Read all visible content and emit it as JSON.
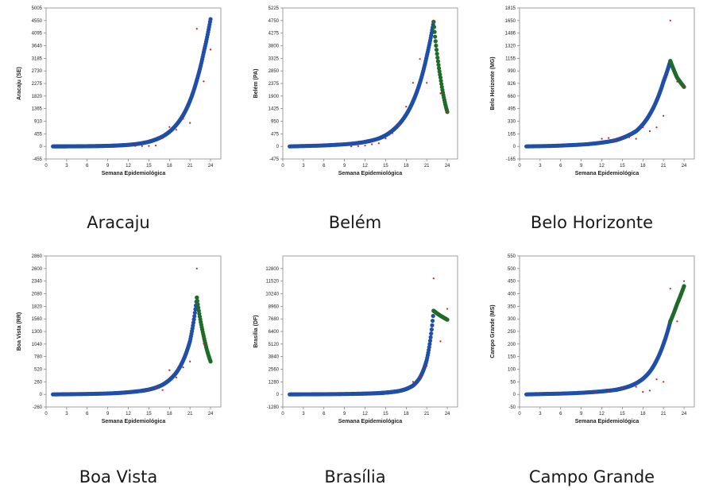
{
  "chart_data": [
    {
      "type": "scatter",
      "caption": "Aracaju",
      "xlabel": "Semana Epidemiológica",
      "ylabel": "Aracaju (SE)",
      "xticks": [
        0,
        3,
        6,
        9,
        12,
        15,
        18,
        21,
        24
      ],
      "yticks": [
        -455,
        0,
        455,
        910,
        1365,
        1820,
        2275,
        2730,
        3185,
        3640,
        4095,
        4550,
        5005
      ],
      "xlim": [
        0,
        25.5
      ],
      "ylim": [
        -455,
        5005
      ],
      "observed": {
        "x": [
          12,
          13,
          14,
          15,
          16,
          17,
          18,
          19,
          20,
          21,
          22,
          23,
          24
        ],
        "y": [
          10,
          15,
          10,
          15,
          30,
          300,
          700,
          600,
          1000,
          850,
          4250,
          2350,
          3500
        ]
      },
      "fit": {
        "x": [
          1,
          3,
          5,
          7,
          9,
          11,
          13,
          15,
          16,
          17,
          18,
          19,
          20,
          21,
          22,
          23,
          24
        ],
        "y": [
          0,
          2,
          5,
          10,
          20,
          40,
          80,
          170,
          250,
          360,
          530,
          780,
          1130,
          1650,
          2400,
          3400,
          4600
        ]
      },
      "forecast": {
        "x": [],
        "y": []
      }
    },
    {
      "type": "scatter",
      "caption": "Belém",
      "xlabel": "Semana Epidemiológica",
      "ylabel": "Belém (PA)",
      "xticks": [
        0,
        3,
        6,
        9,
        12,
        15,
        18,
        21,
        24
      ],
      "yticks": [
        -475,
        0,
        475,
        950,
        1425,
        1900,
        2375,
        2850,
        3325,
        3800,
        4275,
        4750,
        5225
      ],
      "xlim": [
        0,
        25.5
      ],
      "ylim": [
        -475,
        5225
      ],
      "observed": {
        "x": [
          10,
          11,
          12,
          13,
          14,
          15,
          16,
          17,
          18,
          19,
          20,
          21,
          22,
          23,
          24
        ],
        "y": [
          0,
          10,
          30,
          80,
          120,
          300,
          500,
          800,
          1500,
          2400,
          3300,
          2400,
          4750,
          2000,
          1300
        ]
      },
      "fit": {
        "x": [
          1,
          4,
          7,
          10,
          12,
          14,
          15,
          16,
          17,
          18,
          19,
          20,
          21,
          22
        ],
        "y": [
          0,
          20,
          50,
          100,
          170,
          300,
          420,
          600,
          850,
          1200,
          1700,
          2400,
          3400,
          4700
        ]
      },
      "forecast": {
        "x": [
          22,
          23,
          24
        ],
        "y": [
          4700,
          2600,
          1300
        ]
      }
    },
    {
      "type": "scatter",
      "caption": "Belo Horizonte",
      "xlabel": "Semana Epidemiológica",
      "ylabel": "Belo Horizonte (MG)",
      "xticks": [
        0,
        3,
        6,
        9,
        12,
        15,
        18,
        21,
        24
      ],
      "yticks": [
        -165,
        0,
        165,
        330,
        495,
        660,
        826,
        990,
        1155,
        1320,
        1486,
        1650,
        1815
      ],
      "xlim": [
        0,
        25.5
      ],
      "ylim": [
        -165,
        1815
      ],
      "observed": {
        "x": [
          12,
          13,
          14,
          15,
          16,
          17,
          18,
          19,
          20,
          21,
          22,
          23,
          24
        ],
        "y": [
          100,
          110,
          80,
          110,
          120,
          100,
          250,
          200,
          250,
          400,
          1650,
          850,
          800
        ]
      },
      "fit": {
        "x": [
          1,
          4,
          7,
          10,
          12,
          14,
          15,
          16,
          17,
          18,
          19,
          20,
          21,
          22
        ],
        "y": [
          0,
          5,
          15,
          30,
          50,
          80,
          110,
          150,
          200,
          290,
          420,
          600,
          850,
          1120
        ]
      },
      "forecast": {
        "x": [
          22,
          23,
          24
        ],
        "y": [
          1120,
          900,
          780
        ]
      }
    },
    {
      "type": "scatter",
      "caption": "Boa Vista",
      "xlabel": "Semana Epidemiológica",
      "ylabel": "Boa Vista (RR)",
      "xticks": [
        0,
        3,
        6,
        9,
        12,
        15,
        18,
        21,
        24
      ],
      "yticks": [
        -260,
        0,
        260,
        520,
        780,
        1040,
        1300,
        1560,
        1820,
        2080,
        2340,
        2600,
        2860
      ],
      "xlim": [
        0,
        25.5
      ],
      "ylim": [
        -260,
        2860
      ],
      "observed": {
        "x": [
          15,
          16,
          17,
          18,
          19,
          20,
          21,
          22,
          23
        ],
        "y": [
          100,
          140,
          90,
          500,
          350,
          560,
          680,
          2600,
          1050
        ]
      },
      "fit": {
        "x": [
          1,
          4,
          7,
          10,
          12,
          14,
          15,
          16,
          17,
          18,
          19,
          20,
          21,
          22
        ],
        "y": [
          0,
          5,
          12,
          25,
          45,
          75,
          100,
          140,
          200,
          300,
          450,
          700,
          1100,
          2000
        ]
      },
      "forecast": {
        "x": [
          22,
          23,
          24
        ],
        "y": [
          2000,
          1200,
          680
        ]
      }
    },
    {
      "type": "scatter",
      "caption": "Brasília",
      "xlabel": "Semana Epidemiológica",
      "ylabel": "Brasília (DF)",
      "xticks": [
        0,
        3,
        6,
        9,
        12,
        15,
        18,
        21,
        24
      ],
      "yticks": [
        -1280,
        0,
        1280,
        2560,
        3840,
        5120,
        6400,
        7680,
        8960,
        10240,
        11520,
        12800
      ],
      "xlim": [
        0,
        25.5
      ],
      "ylim": [
        -1280,
        14080
      ],
      "observed": {
        "x": [
          19,
          20,
          21,
          22,
          23,
          24
        ],
        "y": [
          1280,
          1800,
          2900,
          11800,
          5400,
          8700
        ]
      },
      "fit": {
        "x": [
          1,
          4,
          7,
          10,
          12,
          14,
          15,
          16,
          17,
          18,
          19,
          20,
          21,
          22
        ],
        "y": [
          0,
          10,
          25,
          50,
          80,
          130,
          180,
          250,
          350,
          550,
          900,
          1700,
          3500,
          8500
        ]
      },
      "forecast": {
        "x": [
          22,
          23,
          24
        ],
        "y": [
          8500,
          8000,
          7600
        ]
      }
    },
    {
      "type": "scatter",
      "caption": "Campo Grande",
      "xlabel": "Semana Epidemiológica",
      "ylabel": "Campo Grande (MS)",
      "xticks": [
        0,
        3,
        6,
        9,
        12,
        15,
        18,
        21,
        24
      ],
      "yticks": [
        -50,
        0,
        50,
        100,
        150,
        200,
        250,
        300,
        350,
        400,
        450,
        500,
        550
      ],
      "xlim": [
        0,
        25.5
      ],
      "ylim": [
        -50,
        550
      ],
      "observed": {
        "x": [
          11,
          13,
          15,
          17,
          18,
          19,
          20,
          21,
          22,
          23,
          24
        ],
        "y": [
          5,
          10,
          25,
          30,
          10,
          15,
          60,
          50,
          420,
          290,
          450
        ]
      },
      "fit": {
        "x": [
          1,
          4,
          7,
          10,
          12,
          14,
          15,
          16,
          17,
          18,
          19,
          20,
          21,
          22
        ],
        "y": [
          0,
          2,
          4,
          8,
          12,
          18,
          24,
          32,
          44,
          62,
          90,
          135,
          200,
          290
        ]
      },
      "forecast": {
        "x": [
          22,
          23,
          24
        ],
        "y": [
          290,
          360,
          430
        ]
      }
    }
  ]
}
